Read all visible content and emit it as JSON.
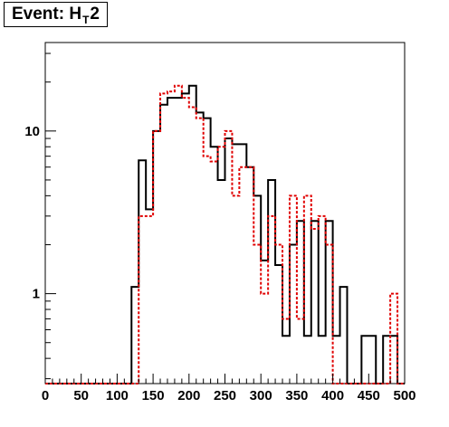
{
  "title": {
    "prefix": "Event: H",
    "sub": "T",
    "suffix": "2"
  },
  "chart_data": {
    "type": "histogram",
    "title": "Event: H_T2",
    "xlabel": "",
    "ylabel": "",
    "xlim": [
      0,
      500
    ],
    "ylim": [
      0.28,
      35
    ],
    "y_scale": "log",
    "bin_edges": [
      0,
      10,
      20,
      30,
      40,
      50,
      60,
      70,
      80,
      90,
      100,
      110,
      120,
      130,
      140,
      150,
      160,
      170,
      180,
      190,
      200,
      210,
      220,
      230,
      240,
      250,
      260,
      270,
      280,
      290,
      300,
      310,
      320,
      330,
      340,
      350,
      360,
      370,
      380,
      390,
      400,
      410,
      420,
      430,
      440,
      450,
      460,
      470,
      480,
      490,
      500
    ],
    "x_ticks": [
      "0",
      "50",
      "100",
      "150",
      "200",
      "250",
      "300",
      "350",
      "400",
      "450",
      "500"
    ],
    "x_tick_values": [
      0,
      50,
      100,
      150,
      200,
      250,
      300,
      350,
      400,
      450,
      500
    ],
    "y_ticks": [
      "1",
      "10"
    ],
    "y_tick_values": [
      1,
      10
    ],
    "series": [
      {
        "color": "#000000",
        "style": "solid",
        "values": [
          0,
          0,
          0,
          0,
          0,
          0,
          0,
          0,
          0,
          0,
          0,
          0,
          1.1,
          6.6,
          3.3,
          10,
          14.5,
          16,
          16,
          17,
          19,
          13,
          12,
          8,
          5,
          9,
          8.3,
          8.3,
          6,
          4,
          1.6,
          5,
          1.5,
          0.55,
          2,
          2.8,
          0.55,
          2.8,
          0.55,
          2.8,
          0.55,
          1.1,
          0,
          0,
          0.55,
          0.55,
          0,
          0.55,
          0.55,
          0
        ]
      },
      {
        "color": "#e00000",
        "style": "dashed",
        "values": [
          0,
          0,
          0,
          0,
          0,
          0,
          0,
          0,
          0,
          0,
          0,
          0,
          0,
          3,
          3,
          10,
          17,
          17.5,
          19,
          16,
          14,
          12,
          7,
          6.5,
          8,
          10,
          4,
          6,
          6,
          2,
          1,
          3,
          2,
          0.7,
          4,
          0.7,
          4,
          2.5,
          3,
          2,
          0,
          0,
          0,
          0,
          0,
          0,
          0,
          0,
          1,
          0
        ]
      }
    ]
  }
}
